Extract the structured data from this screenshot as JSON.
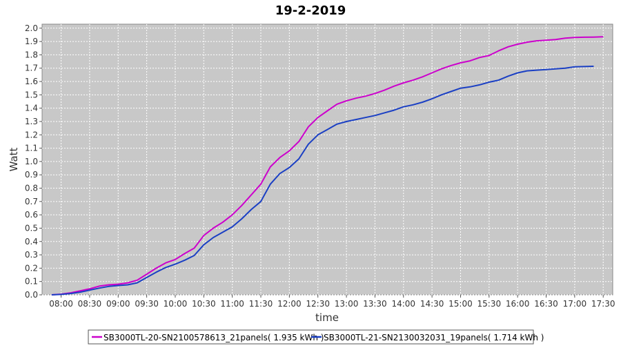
{
  "chart_data": {
    "type": "line",
    "title": "19-2-2019",
    "xlabel": "time",
    "ylabel": "Watt",
    "xlim": [
      "07:40",
      "17:40"
    ],
    "ylim": [
      0,
      2.03
    ],
    "x_ticks": [
      "08:00",
      "08:30",
      "09:00",
      "09:30",
      "10:00",
      "10:30",
      "11:00",
      "11:30",
      "12:00",
      "12:30",
      "13:00",
      "13:30",
      "14:00",
      "14:30",
      "15:00",
      "15:30",
      "16:00",
      "16:30",
      "17:00",
      "17:30"
    ],
    "y_ticks": [
      "0.0",
      "0.1",
      "0.2",
      "0.3",
      "0.4",
      "0.5",
      "0.6",
      "0.7",
      "0.8",
      "0.9",
      "1.0",
      "1.1",
      "1.2",
      "1.3",
      "1.4",
      "1.5",
      "1.6",
      "1.7",
      "1.8",
      "1.9",
      "2.0"
    ],
    "grid": true,
    "legend_position": "bottom",
    "background_color": "#c8c8c8",
    "series": [
      {
        "name": "SB3000TL-20-SN2100578613_21panels( 1.935 kWh )",
        "color": "#cc00cc",
        "x": [
          "07:50",
          "08:00",
          "08:10",
          "08:20",
          "08:30",
          "08:40",
          "08:50",
          "09:00",
          "09:10",
          "09:20",
          "09:30",
          "09:40",
          "09:50",
          "10:00",
          "10:10",
          "10:20",
          "10:30",
          "10:40",
          "10:50",
          "11:00",
          "11:10",
          "11:20",
          "11:30",
          "11:40",
          "11:50",
          "12:00",
          "12:10",
          "12:20",
          "12:30",
          "12:40",
          "12:50",
          "13:00",
          "13:10",
          "13:20",
          "13:30",
          "13:40",
          "13:50",
          "14:00",
          "14:10",
          "14:20",
          "14:30",
          "14:40",
          "14:50",
          "15:00",
          "15:10",
          "15:20",
          "15:30",
          "15:40",
          "15:50",
          "16:00",
          "16:10",
          "16:20",
          "16:30",
          "16:40",
          "16:50",
          "17:00",
          "17:10",
          "17:20",
          "17:30"
        ],
        "y": [
          0.0,
          0.005,
          0.015,
          0.03,
          0.045,
          0.065,
          0.075,
          0.08,
          0.09,
          0.11,
          0.155,
          0.2,
          0.24,
          0.265,
          0.31,
          0.35,
          0.445,
          0.5,
          0.545,
          0.6,
          0.67,
          0.75,
          0.83,
          0.96,
          1.03,
          1.08,
          1.15,
          1.26,
          1.33,
          1.38,
          1.43,
          1.455,
          1.475,
          1.49,
          1.51,
          1.535,
          1.565,
          1.59,
          1.61,
          1.635,
          1.665,
          1.695,
          1.72,
          1.74,
          1.755,
          1.78,
          1.795,
          1.83,
          1.86,
          1.88,
          1.895,
          1.905,
          1.91,
          1.915,
          1.925,
          1.93,
          1.932,
          1.933,
          1.935
        ]
      },
      {
        "name": "SB3000TL-21-SN2130032031_19panels( 1.714 kWh )",
        "color": "#1a3fc4",
        "x": [
          "07:50",
          "08:00",
          "08:10",
          "08:20",
          "08:30",
          "08:40",
          "08:50",
          "09:00",
          "09:10",
          "09:20",
          "09:30",
          "09:40",
          "09:50",
          "10:00",
          "10:10",
          "10:20",
          "10:30",
          "10:40",
          "10:50",
          "11:00",
          "11:10",
          "11:20",
          "11:30",
          "11:40",
          "11:50",
          "12:00",
          "12:10",
          "12:20",
          "12:30",
          "12:40",
          "12:50",
          "13:00",
          "13:10",
          "13:20",
          "13:30",
          "13:40",
          "13:50",
          "14:00",
          "14:10",
          "14:20",
          "14:30",
          "14:40",
          "14:50",
          "15:00",
          "15:10",
          "15:20",
          "15:30",
          "15:40",
          "15:50",
          "16:00",
          "16:10",
          "16:20",
          "16:30",
          "16:40",
          "16:50",
          "17:00",
          "17:10",
          "17:20"
        ],
        "y": [
          0.0,
          0.003,
          0.01,
          0.02,
          0.035,
          0.05,
          0.063,
          0.07,
          0.075,
          0.09,
          0.13,
          0.17,
          0.205,
          0.23,
          0.26,
          0.295,
          0.375,
          0.43,
          0.47,
          0.51,
          0.57,
          0.64,
          0.7,
          0.83,
          0.91,
          0.955,
          1.02,
          1.13,
          1.2,
          1.24,
          1.28,
          1.3,
          1.315,
          1.33,
          1.345,
          1.365,
          1.385,
          1.41,
          1.425,
          1.445,
          1.47,
          1.5,
          1.525,
          1.55,
          1.56,
          1.575,
          1.595,
          1.61,
          1.64,
          1.665,
          1.68,
          1.685,
          1.69,
          1.695,
          1.7,
          1.71,
          1.712,
          1.714
        ]
      }
    ]
  }
}
